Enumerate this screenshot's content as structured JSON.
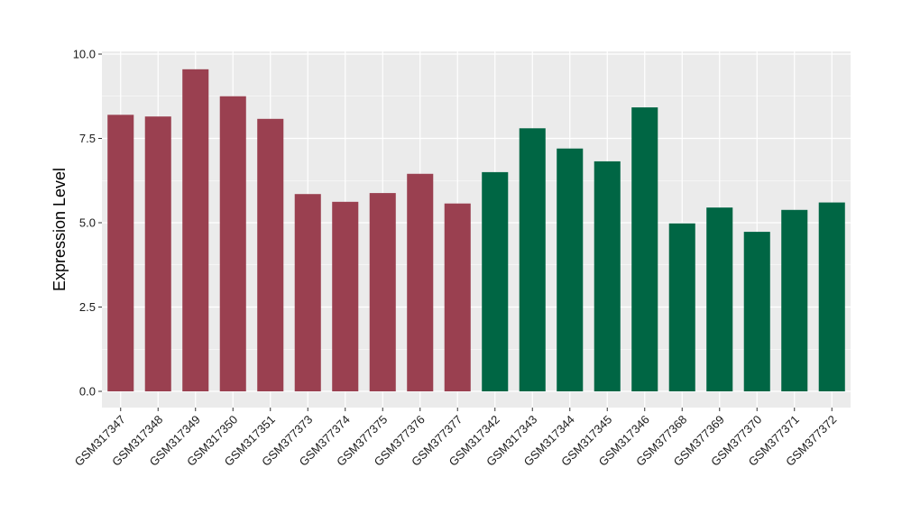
{
  "chart_data": {
    "type": "bar",
    "title": "",
    "xlabel": "",
    "ylabel": "Expression Level",
    "ylim": [
      0,
      10
    ],
    "yticks": [
      0.0,
      2.5,
      5.0,
      7.5,
      10.0
    ],
    "ytick_labels": [
      "0.0",
      "2.5",
      "5.0",
      "7.5",
      "10.0"
    ],
    "grid": true,
    "legend": "none",
    "panel_background": "#ebebeb",
    "grid_color": "#ffffff",
    "categories": [
      "GSM317347",
      "GSM317348",
      "GSM317349",
      "GSM317350",
      "GSM317351",
      "GSM377373",
      "GSM377374",
      "GSM377375",
      "GSM377376",
      "GSM377377",
      "GSM317342",
      "GSM317343",
      "GSM317344",
      "GSM317345",
      "GSM317346",
      "GSM377368",
      "GSM377369",
      "GSM377370",
      "GSM377371",
      "GSM377372"
    ],
    "values": [
      8.2,
      8.15,
      9.55,
      8.75,
      8.08,
      5.85,
      5.62,
      5.88,
      6.45,
      5.57,
      6.5,
      7.8,
      7.2,
      6.82,
      8.42,
      4.98,
      5.45,
      4.73,
      5.38,
      5.6
    ],
    "bar_colors": [
      "#9a4050",
      "#9a4050",
      "#9a4050",
      "#9a4050",
      "#9a4050",
      "#9a4050",
      "#9a4050",
      "#9a4050",
      "#9a4050",
      "#9a4050",
      "#006644",
      "#006644",
      "#006644",
      "#006644",
      "#006644",
      "#006644",
      "#006644",
      "#006644",
      "#006644",
      "#006644"
    ]
  }
}
